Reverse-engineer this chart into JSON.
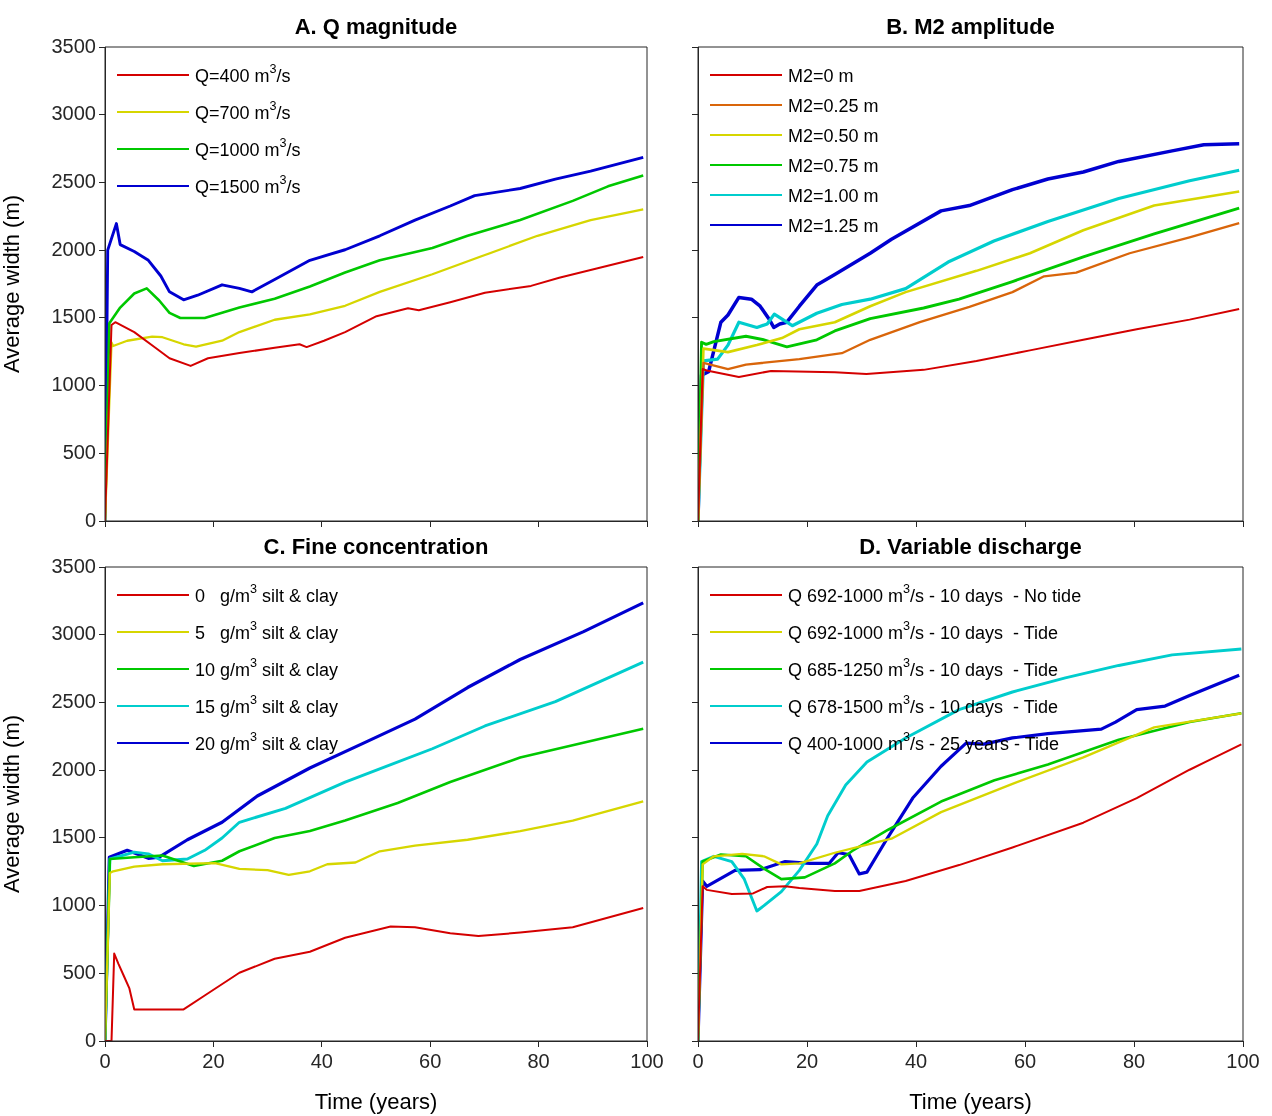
{
  "chart_data": [
    {
      "type": "line",
      "title": "A. Q magnitude",
      "ylabel": "Average width (m)",
      "xlim": [
        0,
        100
      ],
      "xticks": [
        0,
        20,
        40,
        60,
        80,
        100
      ],
      "ylim": [
        0,
        3500
      ],
      "yticks": [
        0,
        500,
        1000,
        1500,
        2000,
        2500,
        3000,
        3500
      ],
      "tick_labels": "y",
      "legend": "top left",
      "series": [
        {
          "name": "Q=400 m$^{3}$/s",
          "color": "#d40000",
          "x": [
            0,
            1.2,
            1.9,
            5.4,
            9.3,
            11.9,
            15.8,
            19,
            24.8,
            31.3,
            35.9,
            37.2,
            40.4,
            44.3,
            50.1,
            55.9,
            57.9,
            63.7,
            70.1,
            78.6,
            83.8,
            90.9,
            99.3
          ],
          "values": [
            0,
            1447,
            1468,
            1395,
            1279,
            1202,
            1145,
            1202,
            1240,
            1279,
            1305,
            1284,
            1331,
            1395,
            1512,
            1571,
            1556,
            1615,
            1685,
            1736,
            1796,
            1866,
            1950
          ]
        },
        {
          "name": "Q=700 m$^{3}$/s",
          "color": "#d6d600",
          "x": [
            0,
            1.2,
            1.5,
            4.1,
            8.7,
            10.6,
            14.5,
            16.8,
            21.6,
            24.8,
            31.3,
            37.8,
            44.3,
            50.7,
            60.4,
            70.1,
            79.8,
            89.6,
            99.3
          ],
          "values": [
            0,
            1318,
            1292,
            1331,
            1362,
            1357,
            1305,
            1287,
            1331,
            1395,
            1486,
            1525,
            1589,
            1692,
            1822,
            1964,
            2106,
            2222,
            2301
          ]
        },
        {
          "name": "Q=1000 m$^{3}$/s",
          "color": "#00c800",
          "x": [
            0,
            0.8,
            2.8,
            5.4,
            7.7,
            10,
            11.9,
            13.9,
            18.4,
            24.8,
            31.3,
            37.8,
            44.3,
            50.7,
            60.4,
            66.9,
            76.6,
            86.3,
            92.8,
            99.3
          ],
          "values": [
            0,
            1460,
            1576,
            1680,
            1718,
            1628,
            1537,
            1499,
            1499,
            1576,
            1641,
            1731,
            1835,
            1925,
            2016,
            2106,
            2222,
            2364,
            2471,
            2552
          ]
        },
        {
          "name": "Q=1500 m$^{3}$/s",
          "color": "#0000d0",
          "x": [
            0,
            0.5,
            2.1,
            2.8,
            5.4,
            8,
            10.3,
            11.9,
            14.5,
            17.1,
            21.6,
            24.8,
            27.1,
            31.3,
            37.8,
            44.3,
            50.7,
            57.2,
            63.7,
            68.2,
            76.6,
            83.1,
            89.6,
            99.3
          ],
          "values": [
            0,
            2000,
            2196,
            2041,
            1990,
            1925,
            1809,
            1692,
            1633,
            1667,
            1744,
            1718,
            1692,
            1783,
            1925,
            2003,
            2106,
            2222,
            2326,
            2403,
            2455,
            2524,
            2584,
            2685
          ]
        }
      ]
    },
    {
      "type": "line",
      "title": "B. M2 amplitude",
      "xlim": [
        0,
        100
      ],
      "xticks": [
        0,
        20,
        40,
        60,
        80,
        100
      ],
      "ylim": [
        0,
        3500
      ],
      "yticks": [
        0,
        500,
        1000,
        1500,
        2000,
        2500,
        3000,
        3500
      ],
      "tick_labels": false,
      "legend": "top left",
      "series": [
        {
          "name": "M2=0 m",
          "color": "#d40000",
          "x": [
            0,
            0.85,
            1.6,
            7.5,
            13.4,
            25.1,
            30.9,
            41.4,
            51.1,
            60.9,
            70.7,
            80.5,
            90.2,
            99.3
          ],
          "values": [
            0,
            1122,
            1111,
            1064,
            1108,
            1098,
            1085,
            1116,
            1182,
            1260,
            1338,
            1416,
            1487,
            1565
          ]
        },
        {
          "name": "M2=0.25 m",
          "color": "#d9650a",
          "x": [
            0,
            1,
            5.5,
            8.8,
            18.6,
            26.4,
            31.6,
            40.7,
            49.8,
            57.7,
            63.5,
            69.4,
            79.2,
            90.2,
            99.3
          ],
          "values": [
            0,
            1168,
            1122,
            1155,
            1195,
            1239,
            1338,
            1468,
            1581,
            1690,
            1807,
            1834,
            1977,
            2094,
            2199
          ]
        },
        {
          "name": "M2=0.50 m",
          "color": "#d6d600",
          "x": [
            0,
            1,
            5.5,
            10.8,
            15.4,
            18.6,
            25.1,
            31.6,
            38.1,
            51.1,
            60.9,
            70.7,
            83.7,
            99.3
          ],
          "values": [
            0,
            1273,
            1247,
            1299,
            1351,
            1416,
            1468,
            1586,
            1690,
            1847,
            1977,
            2147,
            2329,
            2433
          ]
        },
        {
          "name": "M2=0.75 m",
          "color": "#00c800",
          "x": [
            0,
            0.65,
            1.5,
            2.9,
            8.8,
            12.1,
            16.3,
            21.8,
            25.1,
            31.6,
            41.4,
            47.9,
            57.7,
            70.7,
            83.7,
            99.3
          ],
          "values": [
            0,
            1320,
            1304,
            1325,
            1364,
            1338,
            1286,
            1338,
            1403,
            1494,
            1573,
            1638,
            1768,
            1951,
            2121,
            2311
          ]
        },
        {
          "name": "M2=1.00 m",
          "color": "#00cdcd",
          "x": [
            0,
            1,
            3.6,
            5.5,
            7.5,
            10.8,
            12.7,
            14,
            17.3,
            21.8,
            26.4,
            31.6,
            38.1,
            45.9,
            54.3,
            64.2,
            77.2,
            90.2,
            99.3
          ],
          "values": [
            0,
            1182,
            1195,
            1299,
            1468,
            1429,
            1455,
            1528,
            1442,
            1534,
            1599,
            1638,
            1716,
            1912,
            2068,
            2212,
            2381,
            2512,
            2590
          ]
        },
        {
          "name": "M2=1.25 m",
          "color": "#0000d0",
          "x": [
            0,
            0.65,
            1.95,
            4.2,
            5.5,
            7.5,
            9.8,
            11.4,
            13,
            13.9,
            15,
            16.3,
            18.6,
            21.8,
            25.1,
            31.6,
            35.5,
            44.6,
            49.8,
            57.7,
            64.2,
            70.7,
            77.2,
            87,
            92.8,
            99.3
          ],
          "values": [
            0,
            1077,
            1103,
            1468,
            1521,
            1651,
            1638,
            1586,
            1494,
            1429,
            1455,
            1468,
            1586,
            1742,
            1821,
            1977,
            2081,
            2290,
            2329,
            2447,
            2525,
            2577,
            2655,
            2733,
            2778,
            2786
          ]
        }
      ]
    },
    {
      "type": "line",
      "title": "C. Fine concentration",
      "xlabel": "Time (years)",
      "ylabel": "Average width (m)",
      "xlim": [
        0,
        100
      ],
      "xticks": [
        0,
        20,
        40,
        60,
        80,
        100
      ],
      "ylim": [
        0,
        3500
      ],
      "yticks": [
        0,
        500,
        1000,
        1500,
        2000,
        2500,
        3000,
        3500
      ],
      "legend": "top left",
      "series": [
        {
          "name": "0   g/m$^{3}$ silt & clay",
          "color": "#d40000",
          "x": [
            0,
            1.2,
            1.7,
            2.5,
            3.5,
            4.5,
            5.4,
            14.5,
            18.4,
            24.8,
            31.3,
            37.8,
            44.3,
            52.7,
            57.2,
            63.7,
            68.9,
            76.6,
            86.3,
            99.3
          ],
          "values": [
            0,
            0,
            646,
            568,
            478,
            388,
            233,
            233,
            336,
            504,
            607,
            659,
            762,
            845,
            840,
            796,
            775,
            801,
            840,
            982
          ]
        },
        {
          "name": "5   g/m$^{3}$ silt & clay",
          "color": "#d6d600",
          "x": [
            0,
            0.9,
            1.5,
            5.4,
            10.6,
            20.3,
            24.8,
            30,
            33.9,
            37.8,
            41,
            46.2,
            50.7,
            57.2,
            66.9,
            76.6,
            86.3,
            99.3
          ],
          "values": [
            0,
            1240,
            1253,
            1287,
            1305,
            1313,
            1271,
            1261,
            1227,
            1253,
            1305,
            1318,
            1401,
            1442,
            1486,
            1550,
            1628,
            1770
          ]
        },
        {
          "name": "10 g/m$^{3}$ silt & clay",
          "color": "#00c800",
          "x": [
            0,
            0.9,
            5.4,
            10.6,
            16.4,
            21.6,
            24.8,
            31.3,
            37.8,
            44.3,
            54,
            63.7,
            76.6,
            99.3
          ],
          "values": [
            0,
            1344,
            1357,
            1370,
            1292,
            1331,
            1401,
            1499,
            1550,
            1628,
            1757,
            1912,
            2093,
            2305
          ]
        },
        {
          "name": "15 g/m$^{3}$ silt & clay",
          "color": "#00cdcd",
          "x": [
            0,
            0.9,
            5.4,
            8,
            10.6,
            15.2,
            18.4,
            21.6,
            24.8,
            33.3,
            44.3,
            60.4,
            70.1,
            83.1,
            99.3
          ],
          "values": [
            0,
            1344,
            1395,
            1382,
            1331,
            1344,
            1408,
            1499,
            1615,
            1718,
            1912,
            2158,
            2326,
            2506,
            2798
          ]
        },
        {
          "name": "20 g/m$^{3}$ silt & clay",
          "color": "#0000d0",
          "x": [
            0,
            0.8,
            4.1,
            8,
            10,
            15.2,
            21.6,
            28.1,
            37.8,
            47.5,
            57.2,
            66.9,
            76.6,
            88.3,
            99.3
          ],
          "values": [
            0,
            1357,
            1408,
            1349,
            1357,
            1486,
            1615,
            1809,
            2016,
            2196,
            2377,
            2610,
            2817,
            3023,
            3235
          ]
        }
      ]
    },
    {
      "type": "line",
      "title": "D. Variable discharge",
      "xlabel": "Time (years)",
      "xlim": [
        0,
        100
      ],
      "xticks": [
        0,
        20,
        40,
        60,
        80,
        100
      ],
      "ylim": [
        0,
        3500
      ],
      "yticks": [
        0,
        500,
        1000,
        1500,
        2000,
        2500,
        3000,
        3500
      ],
      "tick_labels": "x",
      "legend": "top left",
      "series": [
        {
          "name": "Q 692-1000 m$^{3}$/s - 10 days  - No tide",
          "color": "#d40000",
          "x": [
            0,
            0.85,
            1.6,
            6.2,
            10.1,
            12.7,
            16,
            18.6,
            25.1,
            29.6,
            38.1,
            47.9,
            57.7,
            70.7,
            80.5,
            90.2,
            99.7
          ],
          "values": [
            0,
            1142,
            1116,
            1085,
            1090,
            1137,
            1142,
            1129,
            1108,
            1108,
            1182,
            1299,
            1429,
            1612,
            1794,
            2003,
            2191
          ]
        },
        {
          "name": "Q 692-1000 m$^{3}$/s - 10 days  - Tide",
          "color": "#d6d600",
          "x": [
            0,
            0.85,
            2.9,
            8.1,
            12.1,
            15.3,
            18.6,
            25.1,
            31.6,
            35.5,
            44.6,
            57.7,
            70.7,
            83.7,
            99.7
          ],
          "values": [
            0,
            1304,
            1364,
            1382,
            1364,
            1304,
            1312,
            1390,
            1455,
            1494,
            1690,
            1899,
            2094,
            2316,
            2420
          ]
        },
        {
          "name": "Q 685-1250 m$^{3}$/s - 10 days  - Tide",
          "color": "#00c800",
          "x": [
            0,
            0.85,
            4.2,
            8.8,
            12.1,
            15.3,
            19.6,
            25.1,
            28.3,
            34.9,
            44.6,
            54.4,
            64.2,
            77.2,
            90.2,
            99.7
          ],
          "values": [
            0,
            1325,
            1377,
            1364,
            1273,
            1195,
            1208,
            1312,
            1403,
            1560,
            1768,
            1925,
            2042,
            2225,
            2355,
            2420
          ]
        },
        {
          "name": "Q 678-1500 m$^{3}$/s - 10 days  - Tide",
          "color": "#00cdcd",
          "x": [
            0,
            0.65,
            2.9,
            6.2,
            8.5,
            10.8,
            12.1,
            15.3,
            18.6,
            21.8,
            23.8,
            27.1,
            31,
            38.1,
            47.9,
            57.7,
            67.4,
            77.2,
            87,
            99.7
          ],
          "values": [
            0,
            1325,
            1364,
            1325,
            1195,
            960,
            999,
            1103,
            1260,
            1455,
            1664,
            1891,
            2060,
            2238,
            2447,
            2577,
            2681,
            2773,
            2851,
            2895
          ]
        },
        {
          "name": "Q 400-1000 m$^{3}$/s - 25 years - Tide",
          "color": "#0000d0",
          "x": [
            0,
            0.85,
            1.6,
            6.8,
            11.4,
            16,
            20.5,
            24.1,
            25.7,
            27.7,
            29.6,
            31,
            34.9,
            39.4,
            44.6,
            49.2,
            52.4,
            57.7,
            64.2,
            74,
            76.6,
            80.5,
            85.7,
            90.2,
            99.3
          ],
          "values": [
            0,
            1181,
            1142,
            1260,
            1265,
            1325,
            1312,
            1312,
            1390,
            1377,
            1234,
            1247,
            1508,
            1794,
            2029,
            2199,
            2192,
            2238,
            2269,
            2303,
            2355,
            2447,
            2473,
            2551,
            2700
          ]
        }
      ]
    }
  ]
}
